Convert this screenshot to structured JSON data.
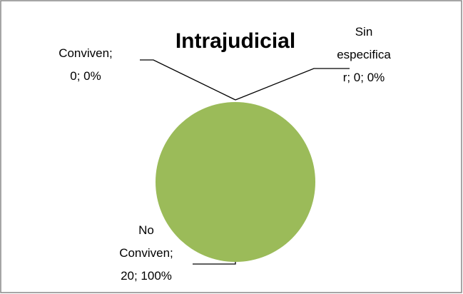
{
  "chart_data": {
    "type": "pie",
    "title": "Intrajudicial",
    "categories": [
      "Conviven",
      "No Conviven",
      "Sin especificar"
    ],
    "values": [
      0,
      20,
      0
    ],
    "value_labels": [
      "Conviven; 0; 0%",
      "No Conviven; 20; 100%",
      "Sin especificar; 0; 0%"
    ],
    "color": "#9bbb59"
  }
}
